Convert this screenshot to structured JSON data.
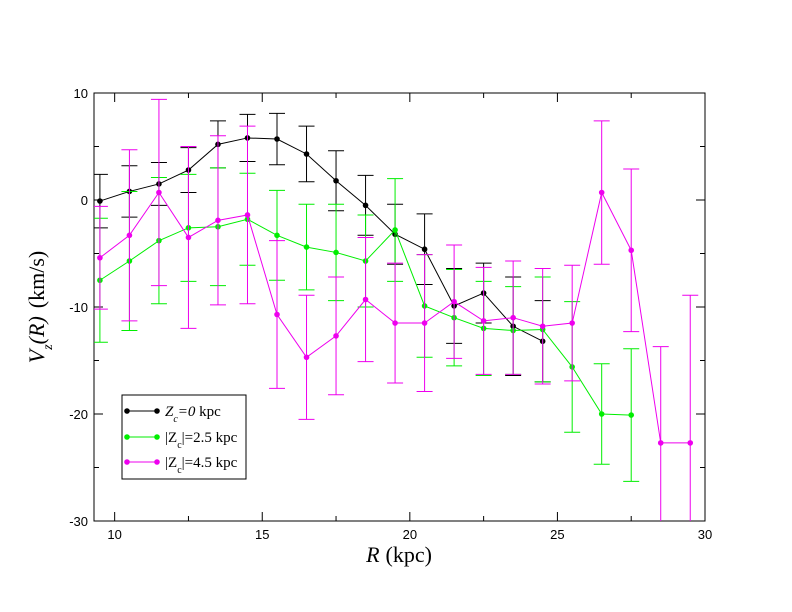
{
  "chart_data": {
    "type": "line",
    "title": "",
    "xlabel": {
      "var": "R",
      "unit": "(kpc)"
    },
    "ylabel": {
      "var": "V",
      "sub": "z",
      "arg": "(R)",
      "unit": "(km/s)"
    },
    "xlim": [
      9.3,
      30
    ],
    "ylim": [
      -30,
      10
    ],
    "xticks": [
      10,
      15,
      20,
      25,
      30
    ],
    "yticks": [
      -30,
      -20,
      -10,
      0,
      10
    ],
    "legend_position": "bottom-left",
    "grid": false,
    "series": [
      {
        "name": "Z_c=0 kpc",
        "legend": {
          "pre": "",
          "sym": "Z",
          "sub": "c",
          "mid": "=0",
          "post": "  kpc",
          "italic": true
        },
        "color": "#000000",
        "x": [
          9.5,
          10.5,
          11.5,
          12.5,
          13.5,
          14.5,
          15.5,
          16.5,
          17.5,
          18.5,
          19.5,
          20.5,
          21.5,
          22.5,
          23.5,
          24.5
        ],
        "y": [
          -0.1,
          0.8,
          1.5,
          2.8,
          5.2,
          5.8,
          5.7,
          4.3,
          1.8,
          -0.5,
          -3.2,
          -4.6,
          -9.9,
          -8.7,
          -11.8,
          -13.2
        ],
        "err": [
          2.5,
          2.4,
          2.0,
          2.1,
          2.2,
          2.2,
          2.4,
          2.6,
          2.8,
          2.8,
          2.8,
          3.3,
          3.5,
          2.8,
          4.6,
          3.8
        ]
      },
      {
        "name": "|Z_c|=2.5 kpc",
        "legend": {
          "pre": "|",
          "sym": "Z",
          "sub": "c",
          "mid": "|=2.5",
          "post": "  kpc",
          "italic": false
        },
        "color": "#00ee00",
        "x": [
          9.5,
          10.5,
          11.5,
          12.5,
          13.5,
          14.5,
          15.5,
          16.5,
          17.5,
          18.5,
          19.5,
          20.5,
          21.5,
          22.5,
          23.5,
          24.5,
          25.5,
          26.5,
          27.5
        ],
        "y": [
          -7.5,
          -5.7,
          -3.8,
          -2.6,
          -2.5,
          -1.8,
          -3.3,
          -4.4,
          -4.9,
          -5.7,
          -2.8,
          -9.9,
          -11.0,
          -12.0,
          -12.2,
          -12.1,
          -15.6,
          -20.0,
          -20.1
        ],
        "err": [
          5.8,
          6.5,
          5.9,
          5.0,
          5.5,
          4.3,
          4.2,
          4.0,
          4.5,
          4.3,
          4.8,
          4.8,
          4.5,
          4.4,
          4.1,
          4.9,
          6.1,
          4.7,
          6.2
        ]
      },
      {
        "name": "|Z_c|=4.5 kpc",
        "legend": {
          "pre": "|",
          "sym": "Z",
          "sub": "c",
          "mid": "|=4.5",
          "post": "  kpc",
          "italic": false
        },
        "color": "#ee00ee",
        "x": [
          9.5,
          10.5,
          11.5,
          12.5,
          13.5,
          14.5,
          15.5,
          16.5,
          17.5,
          18.5,
          19.5,
          20.5,
          21.5,
          22.5,
          23.5,
          24.5,
          25.5,
          26.5,
          27.5,
          28.5,
          29.5
        ],
        "y": [
          -5.4,
          -3.3,
          0.7,
          -3.5,
          -1.9,
          -1.4,
          -10.7,
          -14.7,
          -12.7,
          -9.3,
          -11.5,
          -11.5,
          -9.5,
          -11.3,
          -11.0,
          -11.8,
          -11.5,
          0.7,
          -4.7,
          -22.7,
          -22.7
        ],
        "err": [
          4.8,
          8.0,
          8.7,
          8.5,
          7.9,
          8.3,
          6.9,
          5.8,
          5.5,
          5.8,
          5.6,
          6.4,
          5.3,
          5.0,
          5.3,
          5.4,
          5.4,
          6.7,
          7.6,
          9.0,
          13.8
        ]
      }
    ]
  }
}
